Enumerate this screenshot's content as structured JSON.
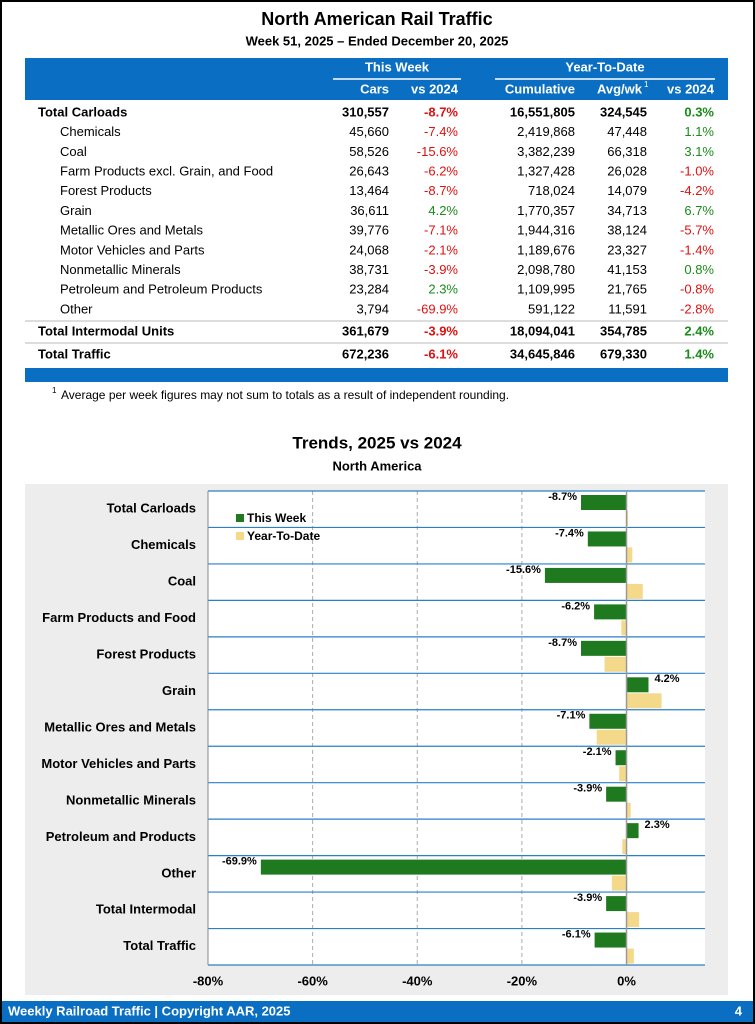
{
  "header": {
    "title": "North American Rail Traffic",
    "subtitle": "Week 51, 2025 – Ended December 20, 2025"
  },
  "table": {
    "groups": [
      "This Week",
      "Year-To-Date"
    ],
    "columns": [
      "Cars",
      "vs 2024",
      "Cumulative",
      "Avg/wk",
      "vs 2024"
    ],
    "avg_note": "1",
    "rows": [
      [
        "Total Carloads",
        "310,557",
        "-8.7%",
        "16,551,805",
        "324,545",
        "0.3%"
      ],
      [
        "Chemicals",
        "45,660",
        "-7.4%",
        "2,419,868",
        "47,448",
        "1.1%"
      ],
      [
        "Coal",
        "58,526",
        "-15.6%",
        "3,382,239",
        "66,318",
        "3.1%"
      ],
      [
        "Farm Products excl. Grain, and Food",
        "26,643",
        "-6.2%",
        "1,327,428",
        "26,028",
        "-1.0%"
      ],
      [
        "Forest Products",
        "13,464",
        "-8.7%",
        "718,024",
        "14,079",
        "-4.2%"
      ],
      [
        "Grain",
        "36,611",
        "4.2%",
        "1,770,357",
        "34,713",
        "6.7%"
      ],
      [
        "Metallic Ores and Metals",
        "39,776",
        "-7.1%",
        "1,944,316",
        "38,124",
        "-5.7%"
      ],
      [
        "Motor Vehicles and Parts",
        "24,068",
        "-2.1%",
        "1,189,676",
        "23,327",
        "-1.4%"
      ],
      [
        "Nonmetallic Minerals",
        "38,731",
        "-3.9%",
        "2,098,780",
        "41,153",
        "0.8%"
      ],
      [
        "Petroleum and Petroleum Products",
        "23,284",
        "2.3%",
        "1,109,995",
        "21,765",
        "-0.8%"
      ],
      [
        "Other",
        "3,794",
        "-69.9%",
        "591,122",
        "11,591",
        "-2.8%"
      ],
      [
        "Total Intermodal Units",
        "361,679",
        "-3.9%",
        "18,094,041",
        "354,785",
        "2.4%"
      ],
      [
        "Total Traffic",
        "672,236",
        "-6.1%",
        "34,645,846",
        "679,330",
        "1.4%"
      ]
    ]
  },
  "footnote": {
    "marker": "1",
    "text": "Average per week figures may not sum to totals as a result of independent rounding."
  },
  "chart_data": {
    "type": "hbar",
    "title": "Trends, 2025 vs 2024",
    "subtitle": "North America",
    "categories": [
      "Total Carloads",
      "Chemicals",
      "Coal",
      "Farm Products and Food",
      "Forest Products",
      "Grain",
      "Metallic Ores and Metals",
      "Motor Vehicles and Parts",
      "Nonmetallic Minerals",
      "Petroleum and Products",
      "Other",
      "Total Intermodal",
      "Total Traffic"
    ],
    "series": [
      {
        "name": "This Week",
        "color": "#1f7a1f",
        "values": [
          -8.7,
          -7.4,
          -15.6,
          -6.2,
          -8.7,
          4.2,
          -7.1,
          -2.1,
          -3.9,
          2.3,
          -69.9,
          -3.9,
          -6.1
        ],
        "value_labels": [
          "-8.7%",
          "-7.4%",
          "-15.6%",
          "-6.2%",
          "-8.7%",
          "4.2%",
          "-7.1%",
          "-2.1%",
          "-3.9%",
          "2.3%",
          "-69.9%",
          "-3.9%",
          "-6.1%"
        ]
      },
      {
        "name": "Year-To-Date",
        "color": "#f5d98b",
        "values": [
          0.3,
          1.1,
          3.1,
          -1.0,
          -4.2,
          6.7,
          -5.7,
          -1.4,
          0.8,
          -0.8,
          -2.8,
          2.4,
          1.4
        ]
      }
    ],
    "xlim": [
      -80,
      15
    ],
    "xticks": [
      {
        "value": -80,
        "label": "-80%"
      },
      {
        "value": -60,
        "label": "-60%"
      },
      {
        "value": -40,
        "label": "-40%"
      },
      {
        "value": -20,
        "label": "-20%"
      },
      {
        "value": 0,
        "label": "0%"
      }
    ],
    "grid": true
  },
  "footer": {
    "text": "Weekly Railroad Traffic | Copyright AAR, 2025",
    "page": "4"
  }
}
